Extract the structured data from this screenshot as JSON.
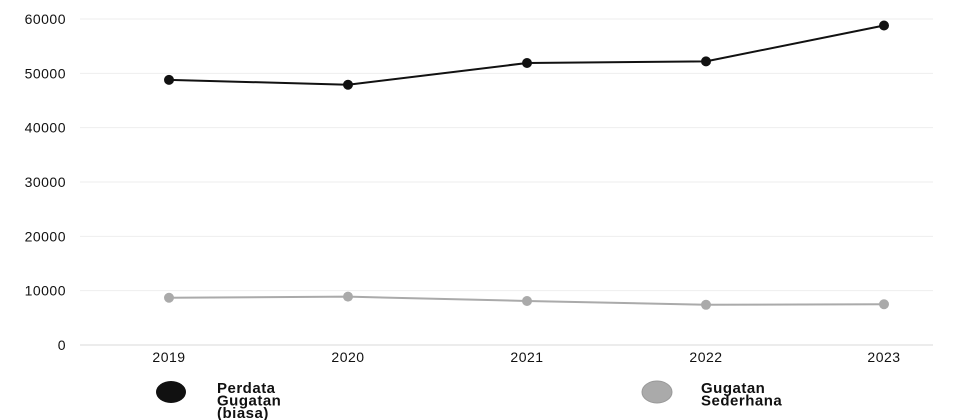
{
  "chart_data": {
    "type": "line",
    "title": "",
    "xlabel": "",
    "ylabel": "",
    "categories": [
      "2019",
      "2020",
      "2021",
      "2022",
      "2023"
    ],
    "series": [
      {
        "name": "Perdata Gugatan (biasa)",
        "name_lines": [
          "Perdata",
          "Gugatan",
          "(biasa)"
        ],
        "color": "#111111",
        "values": [
          48800,
          47900,
          51900,
          52200,
          58800
        ]
      },
      {
        "name": "Gugatan Sederhana",
        "name_lines": [
          "Gugatan",
          "Sederhana"
        ],
        "color": "#aaaaaa",
        "values": [
          8700,
          8900,
          8100,
          7400,
          7500
        ]
      }
    ],
    "ylim": [
      0,
      60000
    ],
    "yticks": [
      0,
      10000,
      20000,
      30000,
      40000,
      50000,
      60000
    ],
    "ytick_labels": [
      "0",
      "10000",
      "20000",
      "30000",
      "40000",
      "50000",
      "60000"
    ],
    "grid": true,
    "legend_position": "bottom"
  }
}
